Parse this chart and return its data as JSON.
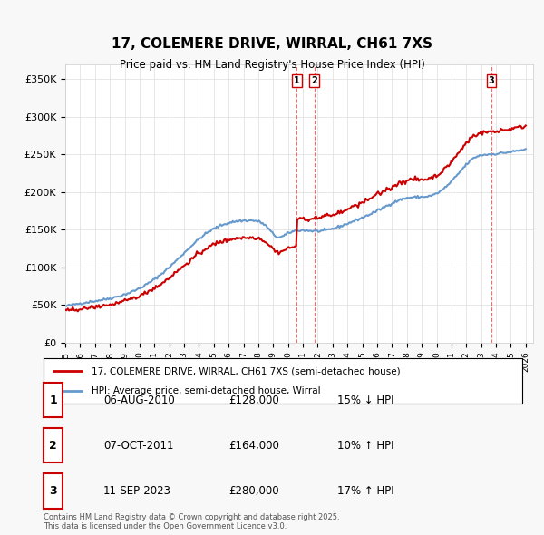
{
  "title": "17, COLEMERE DRIVE, WIRRAL, CH61 7XS",
  "subtitle": "Price paid vs. HM Land Registry's House Price Index (HPI)",
  "ylabel_ticks": [
    "£0",
    "£50K",
    "£100K",
    "£150K",
    "£200K",
    "£250K",
    "£300K",
    "£350K"
  ],
  "ytick_values": [
    0,
    50000,
    100000,
    150000,
    200000,
    250000,
    300000,
    350000
  ],
  "ylim": [
    0,
    370000
  ],
  "xlim_start": 1995.0,
  "xlim_end": 2026.5,
  "transactions": [
    {
      "date_num": 2010.59,
      "price": 128000,
      "label": "1"
    },
    {
      "date_num": 2011.77,
      "price": 164000,
      "label": "2"
    },
    {
      "date_num": 2023.69,
      "price": 280000,
      "label": "3"
    }
  ],
  "legend_entries": [
    {
      "label": "17, COLEMERE DRIVE, WIRRAL, CH61 7XS (semi-detached house)",
      "color": "#cc0000",
      "lw": 1.5
    },
    {
      "label": "HPI: Average price, semi-detached house, Wirral",
      "color": "#6699cc",
      "lw": 1.5
    }
  ],
  "table_rows": [
    {
      "num": "1",
      "date": "06-AUG-2010",
      "price": "£128,000",
      "hpi": "15% ↓ HPI"
    },
    {
      "num": "2",
      "date": "07-OCT-2011",
      "price": "£164,000",
      "hpi": "10% ↑ HPI"
    },
    {
      "num": "3",
      "date": "11-SEP-2023",
      "price": "£280,000",
      "hpi": "17% ↑ HPI"
    }
  ],
  "footnote": "Contains HM Land Registry data © Crown copyright and database right 2025.\nThis data is licensed under the Open Government Licence v3.0.",
  "bg_color": "#f8f8f8",
  "plot_bg_color": "#ffffff",
  "grid_color": "#dddddd",
  "label_box_color": "#cc0000",
  "vline_color": "#ff6666"
}
